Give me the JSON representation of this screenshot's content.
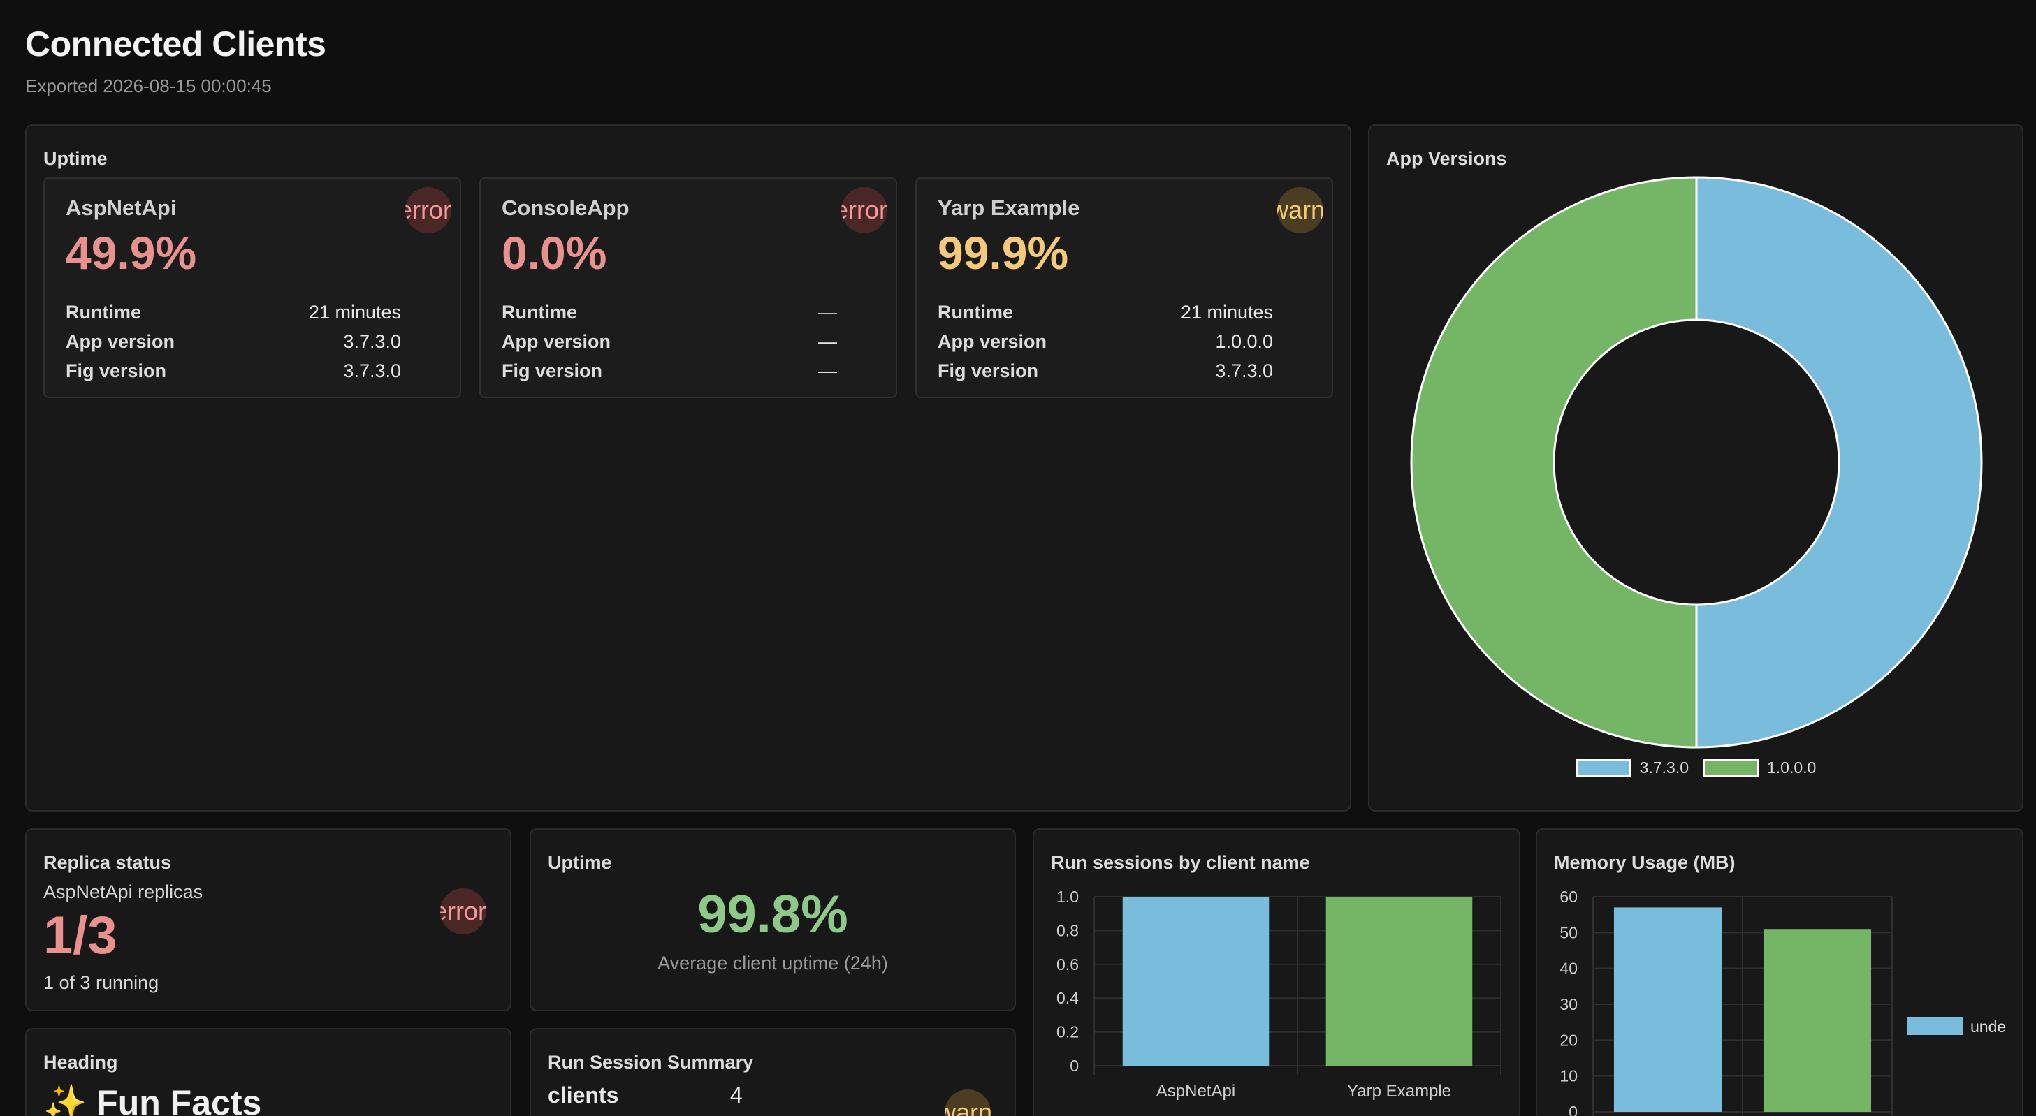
{
  "page": {
    "title": "Connected Clients",
    "subtitle": "Exported 2026-08-15 00:00:45"
  },
  "uptime_panel": {
    "title": "Uptime",
    "labels": {
      "runtime": "Runtime",
      "app_version": "App version",
      "fig_version": "Fig version"
    },
    "clients": [
      {
        "name": "AspNetApi",
        "uptime": "49.9%",
        "status": "error",
        "badge": "error",
        "runtime": "21 minutes",
        "app_version": "3.7.3.0",
        "fig_version": "3.7.3.0",
        "color": "#e8918f"
      },
      {
        "name": "ConsoleApp",
        "uptime": "0.0%",
        "status": "error",
        "badge": "error",
        "runtime": "—",
        "app_version": "—",
        "fig_version": "—",
        "color": "#e8918f"
      },
      {
        "name": "Yarp Example",
        "uptime": "99.9%",
        "status": "warning",
        "badge": "warning",
        "runtime": "21 minutes",
        "app_version": "1.0.0.0",
        "fig_version": "3.7.3.0",
        "color": "#f5c97a"
      }
    ]
  },
  "app_versions": {
    "title": "App Versions",
    "chart_data": {
      "type": "pie",
      "donut": true,
      "categories": [
        "3.7.3.0",
        "1.0.0.0"
      ],
      "values": [
        2,
        2
      ],
      "colors": [
        "#79bcdc",
        "#74b666"
      ],
      "legend": "bottom"
    }
  },
  "replica_status": {
    "title": "Replica status",
    "subtitle": "AspNetApi replicas",
    "value": "1/3",
    "detail": "1 of 3 running",
    "badge": "error"
  },
  "avg_uptime": {
    "title": "Uptime",
    "value": "99.8%",
    "caption": "Average client uptime (24h)"
  },
  "run_sessions": {
    "title": "Run sessions by client name",
    "chart_data": {
      "type": "bar",
      "categories": [
        "AspNetApi",
        "Yarp Example"
      ],
      "values": [
        1,
        1
      ],
      "colors": [
        "#79bcdc",
        "#74b666"
      ],
      "ylim": [
        0,
        1
      ],
      "yticks": [
        "0",
        "0.2",
        "0.4",
        "0.6",
        "0.8",
        "1.0"
      ],
      "grid": true
    }
  },
  "memory_usage": {
    "title": "Memory Usage (MB)",
    "chart_data": {
      "type": "bar",
      "categories": [
        "",
        ""
      ],
      "values": [
        57,
        51
      ],
      "colors": [
        "#79bcdc",
        "#74b666"
      ],
      "ylim": [
        0,
        60
      ],
      "yticks": [
        "0",
        "10",
        "20",
        "30",
        "40",
        "50",
        "60"
      ],
      "legend_label": "unde",
      "grid": true
    }
  },
  "heading_panel": {
    "title": "Heading",
    "text": "✨ Fun Facts"
  },
  "run_session_summary": {
    "title": "Run Session Summary",
    "rows": [
      {
        "label": "clients",
        "value": "4"
      }
    ],
    "badge": "warning"
  }
}
